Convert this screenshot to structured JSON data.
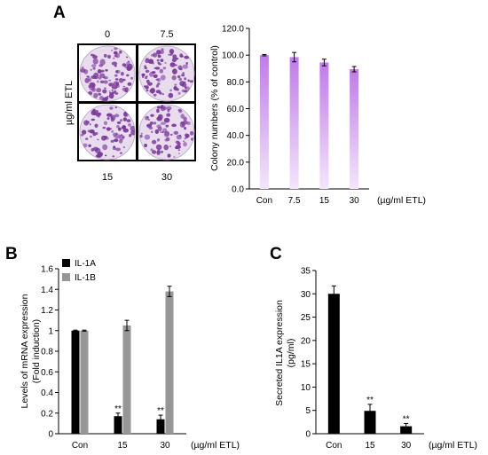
{
  "panels": {
    "a": "A",
    "b": "B",
    "c": "C"
  },
  "plates": {
    "concentration_labels": [
      "0",
      "7.5",
      "15",
      "30"
    ],
    "side_label": "µg/ml ETL",
    "stain_color": "#7a3a9a"
  },
  "colors": {
    "panel_a_bar_top": "#c07be8",
    "panel_a_bar_bottom": "#f3e6fb",
    "il1a": "#000000",
    "il1b": "#969696"
  },
  "chart_data": [
    {
      "id": "A",
      "type": "bar",
      "title": "",
      "ylabel": "Colony numbers (% of control)",
      "xunit": "(µg/ml ETL)",
      "categories": [
        "Con",
        "7.5",
        "15",
        "30"
      ],
      "values": [
        100.0,
        98.5,
        94.5,
        89.5
      ],
      "errors": [
        0.5,
        3.5,
        2.5,
        2.0
      ],
      "ylim": [
        0,
        120
      ],
      "yticks": [
        "0.0",
        "20.0",
        "40.0",
        "60.0",
        "80.0",
        "100.0",
        "120.0"
      ],
      "grid": false,
      "legend": "none"
    },
    {
      "id": "B",
      "type": "bar",
      "title": "",
      "ylabel": [
        "Levels of mRNA expression",
        "(Fold induction)"
      ],
      "xunit": "(µg/ml ETL)",
      "categories": [
        "Con",
        "15",
        "30"
      ],
      "series": [
        {
          "name": "IL-1A",
          "values": [
            1.0,
            0.17,
            0.14
          ],
          "errors": [
            0.005,
            0.03,
            0.04
          ],
          "significance": [
            "",
            "**",
            "**"
          ]
        },
        {
          "name": "IL-1B",
          "values": [
            1.0,
            1.05,
            1.38
          ],
          "errors": [
            0.005,
            0.05,
            0.05
          ],
          "significance": [
            "",
            "",
            ""
          ]
        }
      ],
      "ylim": [
        0,
        1.6
      ],
      "yticks": [
        "0",
        "0.2",
        "0.4",
        "0.6",
        "0.8",
        "1",
        "1.2",
        "1.4",
        "1.6"
      ],
      "grid": false,
      "legend": "top-left"
    },
    {
      "id": "C",
      "type": "bar",
      "title": "",
      "ylabel": [
        "Secreted IL1A expression",
        "(pg/ml)"
      ],
      "xunit": "(µg/ml ETL)",
      "categories": [
        "Con",
        "15",
        "30"
      ],
      "values": [
        30.0,
        4.9,
        1.6
      ],
      "errors": [
        1.7,
        1.4,
        0.6
      ],
      "significance": [
        "",
        "**",
        "**"
      ],
      "ylim": [
        0,
        35
      ],
      "yticks": [
        "0",
        "5",
        "10",
        "15",
        "20",
        "25",
        "30",
        "35"
      ],
      "grid": false,
      "legend": "none"
    }
  ]
}
